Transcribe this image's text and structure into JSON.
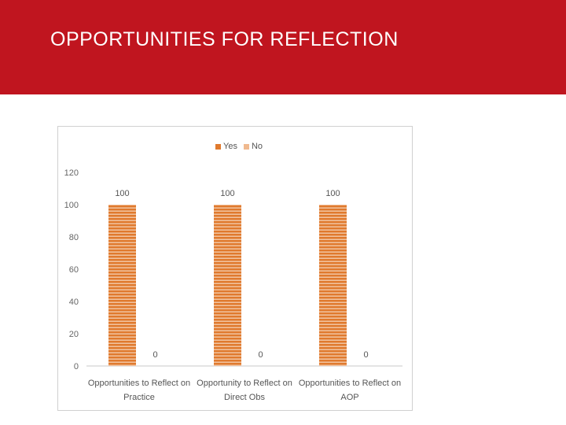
{
  "slide": {
    "title": "OPPORTUNITIES FOR REFLECTION"
  },
  "colors": {
    "header": "#c0151f",
    "yes": "#e07a2e",
    "yes_stripe": "#f6d7bd",
    "no": "#f0b98f"
  },
  "chart_data": {
    "type": "bar",
    "categories": [
      [
        "Opportunities to Reflect on",
        "Practice"
      ],
      [
        "Opportunity to Reflect on",
        "Direct Obs"
      ],
      [
        "Opportunities  to Reflect  on",
        "AOP"
      ]
    ],
    "series": [
      {
        "name": "Yes",
        "values": [
          100,
          100,
          100
        ]
      },
      {
        "name": "No",
        "values": [
          0,
          0,
          0
        ]
      }
    ],
    "ylim": [
      0,
      120
    ],
    "yticks": [
      0,
      20,
      40,
      60,
      80,
      100,
      120
    ],
    "legend": "top-center",
    "title": "",
    "xlabel": "",
    "ylabel": ""
  }
}
